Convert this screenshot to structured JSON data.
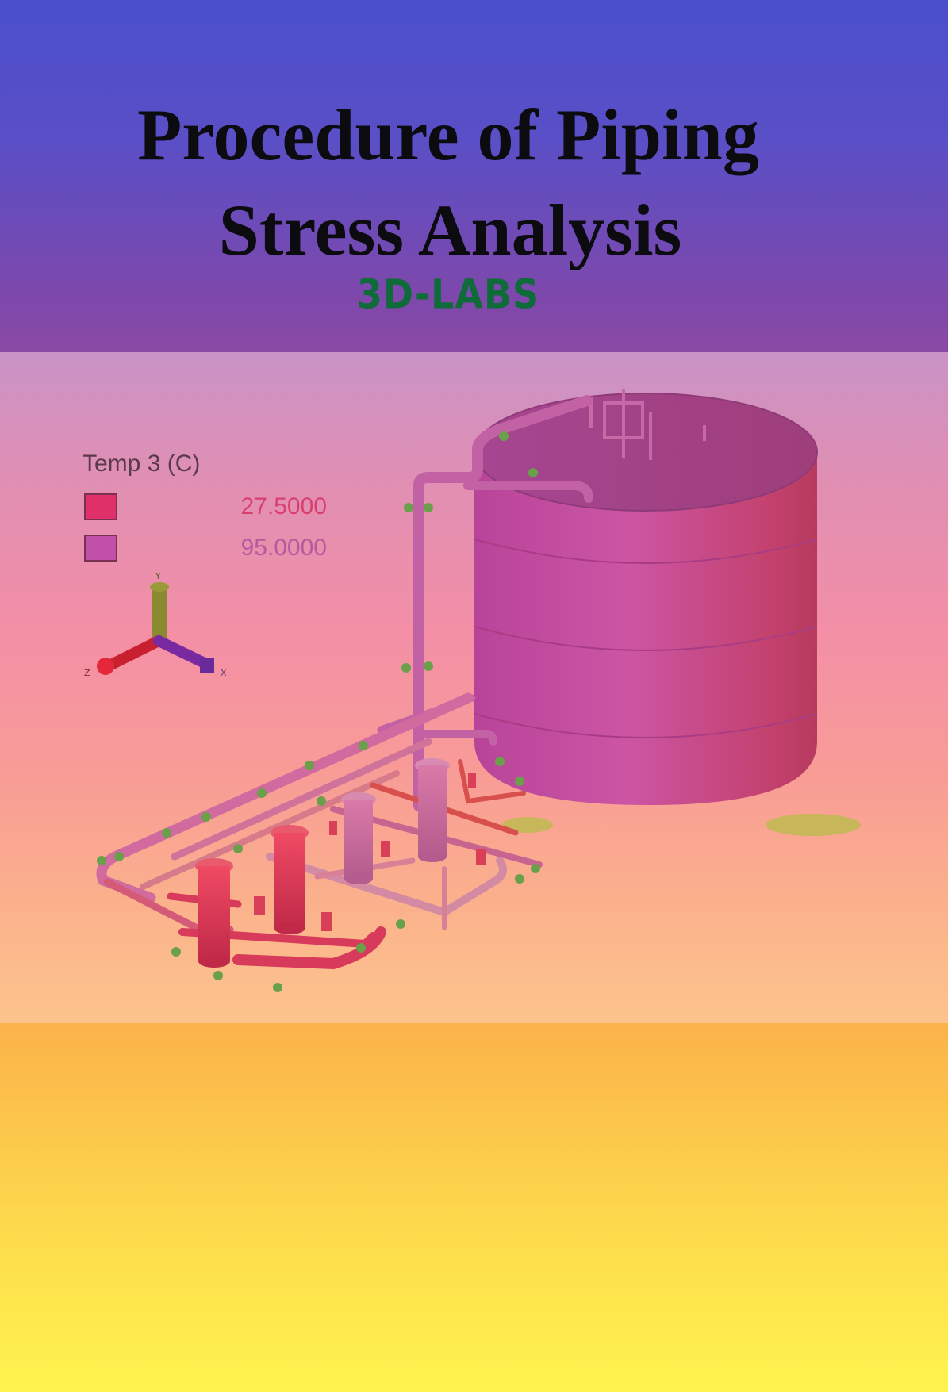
{
  "cover": {
    "title_line_1": "Procedure of Piping",
    "title_line_2": "Stress Analysis",
    "brand": "3D-LABS"
  },
  "legend": {
    "title": "Temp 3 (C)",
    "entries": [
      {
        "value": "27.5000",
        "color": "#e0306a",
        "text_color": "#d8406e"
      },
      {
        "value": "95.0000",
        "color": "#c150a8",
        "text_color": "#b45a9e"
      }
    ]
  },
  "axes": {
    "y_label": "Y",
    "x_label": "X",
    "z_label": "Z"
  },
  "colors": {
    "top_band": "#4a4fcc",
    "bottom_band": "#fff44f",
    "tank": "#c4509e",
    "piping_hot": "#d73a5a",
    "brand_text": "#0f6b3a"
  }
}
